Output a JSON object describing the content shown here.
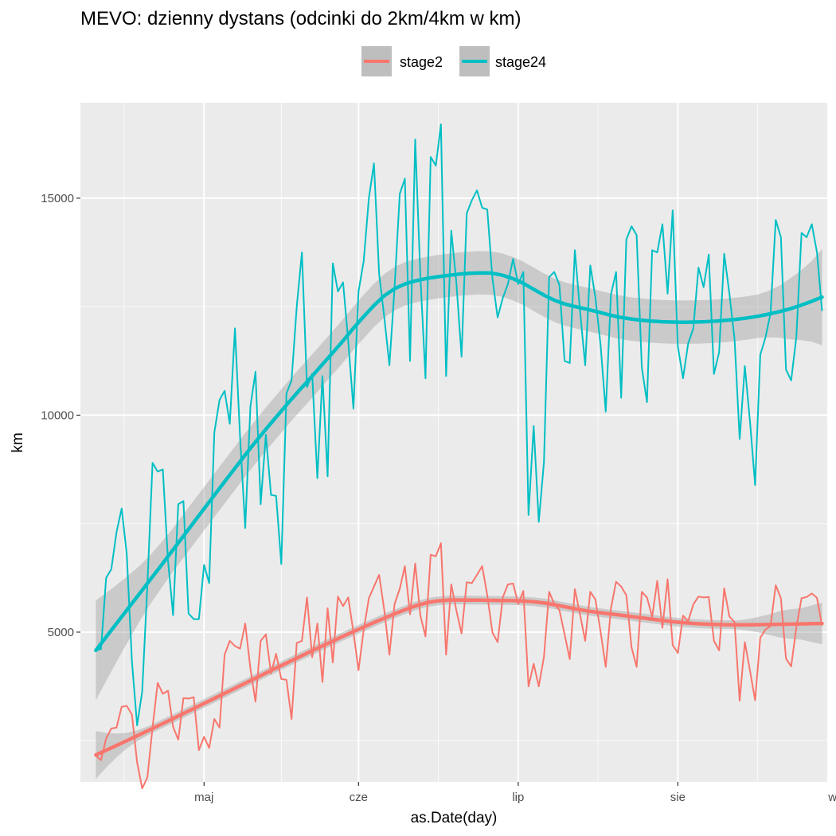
{
  "chart_data": {
    "type": "line",
    "title": "MEVO: dzienny dystans (odcinki do 2km/4km w km)",
    "xlabel": "as.Date(day)",
    "ylabel": "km",
    "x_start": "2019-04-10",
    "x_end": "2019-08-31",
    "xlim_days": [
      -3,
      142
    ],
    "ylim": [
      1550,
      17200
    ],
    "y_ticks": [
      5000,
      10000,
      15000
    ],
    "y_tick_labels": [
      "5000",
      "10000",
      "15000"
    ],
    "y_minor_ticks": [
      2500,
      7500,
      12500
    ],
    "x_ticks_days": [
      21,
      51,
      82,
      113,
      144
    ],
    "x_tick_labels": [
      "maj",
      "cze",
      "lip",
      "sie",
      "wrz"
    ],
    "x_minor_ticks_days": [
      5.5,
      36,
      66.5,
      97.5,
      128.5
    ],
    "grid": true,
    "legend": {
      "position": "top",
      "entries": [
        "stage2",
        "stage24"
      ]
    },
    "series": [
      {
        "name": "stage2",
        "color": "#F8766D",
        "values": [
          2150,
          2050,
          2550,
          2780,
          2800,
          3280,
          3300,
          3100,
          2000,
          1400,
          1650,
          2800,
          3830,
          3580,
          3650,
          2820,
          2520,
          3480,
          3470,
          3500,
          2280,
          2590,
          2330,
          3000,
          2800,
          4480,
          4800,
          4680,
          4620,
          5200,
          4160,
          3400,
          4800,
          4950,
          4050,
          4500,
          3920,
          3900,
          3000,
          4750,
          4800,
          5800,
          4420,
          5200,
          3850,
          5550,
          4300,
          5820,
          5600,
          5800,
          5000,
          4120,
          5050,
          5780,
          6050,
          6320,
          5500,
          4480,
          5650,
          6000,
          6520,
          5410,
          6580,
          5380,
          4900,
          6780,
          6750,
          7050,
          4480,
          6100,
          5500,
          4970,
          6150,
          6130,
          6320,
          6520,
          5850,
          4990,
          4770,
          5800,
          6100,
          6120,
          5650,
          5950,
          3750,
          4270,
          3750,
          4430,
          5930,
          5650,
          5510,
          4950,
          4380,
          5990,
          5410,
          4800,
          5930,
          5750,
          5000,
          4200,
          5550,
          6160,
          6050,
          5850,
          4650,
          4200,
          5930,
          5800,
          5350,
          6180,
          5100,
          6220,
          4700,
          4520,
          5380,
          5250,
          5640,
          5820,
          5800,
          5810,
          4800,
          4580,
          6010,
          5360,
          5230,
          3420,
          4770,
          4110,
          3430,
          4870,
          5060,
          5140,
          6080,
          5780,
          4390,
          4210,
          5110,
          5780,
          5810,
          5890,
          5790,
          5150
        ],
        "smooth": [
          2170,
          2282,
          2396,
          2511,
          2627,
          2744,
          2862,
          2981,
          3100,
          3220,
          3341,
          3462,
          3583,
          3704,
          3825,
          3946,
          4066,
          4186,
          4305,
          4424,
          4542,
          4658,
          4774,
          4888,
          5000,
          5110,
          5218,
          5323,
          5424,
          5520,
          5610,
          5680,
          5720,
          5740,
          5740,
          5738,
          5736,
          5733,
          5730,
          5725,
          5716,
          5700,
          5671,
          5630,
          5580,
          5532,
          5490,
          5455,
          5424,
          5395,
          5365,
          5334,
          5302,
          5271,
          5240,
          5219,
          5200,
          5186,
          5177,
          5172,
          5169,
          5169,
          5171,
          5175,
          5180,
          5185,
          5190,
          5195,
          5200
        ],
        "ci_lower": [
          1620,
          1887,
          2130,
          2339,
          2508,
          2644,
          2762,
          2881,
          3000,
          3120,
          3241,
          3362,
          3483,
          3604,
          3725,
          3846,
          3966,
          4086,
          4205,
          4324,
          4442,
          4558,
          4674,
          4788,
          4900,
          5010,
          5118,
          5223,
          5324,
          5420,
          5510,
          5580,
          5620,
          5640,
          5640,
          5638,
          5636,
          5633,
          5630,
          5625,
          5616,
          5600,
          5571,
          5530,
          5480,
          5432,
          5390,
          5355,
          5324,
          5295,
          5265,
          5234,
          5202,
          5171,
          5140,
          5119,
          5100,
          5086,
          5077,
          5072,
          5069,
          5039,
          4994,
          4941,
          4880,
          4845,
          4830,
          4775,
          4720
        ],
        "ci_upper": [
          2720,
          2677,
          2662,
          2683,
          2746,
          2844,
          2962,
          3081,
          3200,
          3320,
          3441,
          3562,
          3683,
          3804,
          3925,
          4046,
          4166,
          4286,
          4405,
          4524,
          4642,
          4758,
          4874,
          4988,
          5100,
          5210,
          5318,
          5423,
          5524,
          5620,
          5710,
          5780,
          5820,
          5840,
          5840,
          5838,
          5836,
          5833,
          5830,
          5825,
          5816,
          5800,
          5771,
          5730,
          5680,
          5632,
          5590,
          5555,
          5524,
          5495,
          5465,
          5434,
          5402,
          5371,
          5340,
          5319,
          5300,
          5286,
          5277,
          5272,
          5269,
          5299,
          5348,
          5409,
          5480,
          5525,
          5550,
          5615,
          5680
        ]
      },
      {
        "name": "stage24",
        "color": "#00BFC4",
        "values": [
          4580,
          4610,
          6250,
          6450,
          7300,
          7850,
          6800,
          4330,
          2850,
          3630,
          6080,
          8900,
          8700,
          8750,
          6650,
          5390,
          7950,
          8020,
          5430,
          5300,
          5300,
          6550,
          6130,
          9600,
          10350,
          10560,
          9800,
          12000,
          9500,
          7400,
          10200,
          11000,
          7950,
          9550,
          8160,
          8140,
          6570,
          10500,
          10800,
          12500,
          13750,
          10650,
          10950,
          8550,
          10900,
          8590,
          13500,
          12850,
          13060,
          11700,
          10150,
          12850,
          13550,
          15000,
          15800,
          13250,
          12250,
          11150,
          12950,
          15100,
          15450,
          11250,
          16350,
          13200,
          10850,
          15950,
          15750,
          16700,
          10900,
          14250,
          13050,
          11350,
          14650,
          14950,
          15180,
          14780,
          14740,
          13150,
          12250,
          12700,
          13020,
          13600,
          13020,
          13300,
          7700,
          9750,
          7540,
          8920,
          13180,
          13300,
          13000,
          11250,
          11200,
          13800,
          12400,
          11150,
          13450,
          12700,
          11600,
          10080,
          12780,
          13300,
          10400,
          14050,
          14350,
          14150,
          11100,
          10300,
          13800,
          13750,
          14400,
          12800,
          14720,
          11580,
          10850,
          11650,
          12000,
          13400,
          12950,
          13700,
          10950,
          11450,
          13720,
          12800,
          11750,
          9450,
          11130,
          9850,
          8390,
          11390,
          11790,
          12350,
          14500,
          14100,
          11050,
          10800,
          11800,
          14200,
          14100,
          14400,
          13750,
          12400
        ],
        "smooth": [
          4580,
          4900,
          5220,
          5540,
          5860,
          6180,
          6500,
          6825,
          7150,
          7475,
          7800,
          8125,
          8450,
          8770,
          9090,
          9400,
          9700,
          9990,
          10280,
          10560,
          10830,
          11110,
          11390,
          11670,
          11970,
          12250,
          12520,
          12750,
          12920,
          13030,
          13100,
          13150,
          13190,
          13220,
          13250,
          13270,
          13280,
          13275,
          13230,
          13150,
          13040,
          12900,
          12760,
          12640,
          12555,
          12495,
          12440,
          12380,
          12315,
          12260,
          12220,
          12190,
          12168,
          12153,
          12145,
          12142,
          12145,
          12152,
          12165,
          12185,
          12210,
          12240,
          12280,
          12328,
          12385,
          12450,
          12530,
          12620,
          12720
        ],
        "ci_lower": [
          3430,
          3890,
          4340,
          4780,
          5210,
          5610,
          5970,
          6325,
          6650,
          6975,
          7300,
          7625,
          7950,
          8270,
          8590,
          8900,
          9200,
          9490,
          9780,
          10060,
          10330,
          10610,
          10890,
          11170,
          11470,
          11750,
          12020,
          12250,
          12420,
          12530,
          12600,
          12650,
          12690,
          12720,
          12750,
          12770,
          12780,
          12775,
          12730,
          12650,
          12540,
          12400,
          12260,
          12140,
          12055,
          11995,
          11940,
          11880,
          11815,
          11760,
          11720,
          11690,
          11668,
          11653,
          11645,
          11642,
          11645,
          11652,
          11665,
          11685,
          11710,
          11740,
          11780,
          11791,
          11785,
          11750,
          11730,
          11695,
          11610
        ],
        "ci_upper": [
          5730,
          5910,
          6100,
          6300,
          6510,
          6750,
          7030,
          7325,
          7650,
          7975,
          8300,
          8625,
          8950,
          9270,
          9590,
          9900,
          10200,
          10490,
          10780,
          11060,
          11330,
          11610,
          11890,
          12170,
          12470,
          12750,
          13020,
          13250,
          13420,
          13530,
          13600,
          13650,
          13690,
          13720,
          13750,
          13770,
          13780,
          13775,
          13730,
          13650,
          13540,
          13400,
          13260,
          13140,
          13055,
          12995,
          12940,
          12880,
          12815,
          12760,
          12720,
          12690,
          12668,
          12653,
          12645,
          12642,
          12645,
          12652,
          12665,
          12685,
          12710,
          12740,
          12780,
          12865,
          12985,
          13150,
          13330,
          13545,
          13830
        ]
      }
    ]
  }
}
